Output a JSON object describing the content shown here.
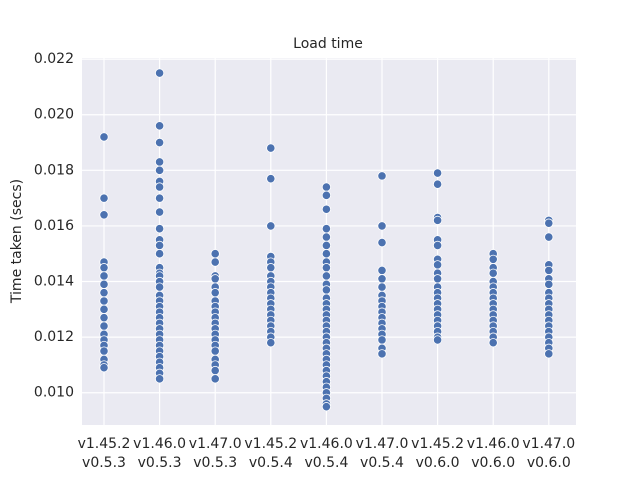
{
  "chart_data": {
    "type": "strip",
    "title": "Load time",
    "ylabel": "Time taken (secs)",
    "categories": [
      [
        "v1.45.2",
        "v0.5.3"
      ],
      [
        "v1.46.0",
        "v0.5.3"
      ],
      [
        "v1.47.0",
        "v0.5.3"
      ],
      [
        "v1.45.2",
        "v0.5.4"
      ],
      [
        "v1.46.0",
        "v0.5.4"
      ],
      [
        "v1.47.0",
        "v0.5.4"
      ],
      [
        "v1.45.2",
        "v0.6.0"
      ],
      [
        "v1.46.0",
        "v0.6.0"
      ],
      [
        "v1.47.0",
        "v0.6.0"
      ]
    ],
    "color": "#4c72b0",
    "values": [
      [
        0.0192,
        0.017,
        0.0164,
        0.0147,
        0.0145,
        0.0142,
        0.0139,
        0.0136,
        0.0133,
        0.013,
        0.0127,
        0.0124,
        0.0121,
        0.0119,
        0.0117,
        0.0115,
        0.0112,
        0.011,
        0.0109
      ],
      [
        0.0215,
        0.0196,
        0.019,
        0.0183,
        0.018,
        0.0176,
        0.0174,
        0.017,
        0.0165,
        0.0159,
        0.0155,
        0.0153,
        0.015,
        0.0145,
        0.0143,
        0.0142,
        0.014,
        0.0138,
        0.0135,
        0.0133,
        0.0131,
        0.0129,
        0.0127,
        0.0125,
        0.0123,
        0.0121,
        0.0119,
        0.0117,
        0.0115,
        0.0113,
        0.0111,
        0.0109,
        0.0107,
        0.0105
      ],
      [
        0.015,
        0.0147,
        0.0142,
        0.0141,
        0.0138,
        0.0136,
        0.0133,
        0.0131,
        0.0129,
        0.0127,
        0.0125,
        0.0123,
        0.0121,
        0.0119,
        0.0117,
        0.0115,
        0.0112,
        0.011,
        0.0108,
        0.0105
      ],
      [
        0.0188,
        0.0177,
        0.016,
        0.0149,
        0.0147,
        0.0145,
        0.0142,
        0.014,
        0.0138,
        0.0136,
        0.0134,
        0.0132,
        0.013,
        0.0128,
        0.0126,
        0.0124,
        0.0122,
        0.012,
        0.0118
      ],
      [
        0.0174,
        0.0171,
        0.0166,
        0.0159,
        0.0156,
        0.0153,
        0.015,
        0.0147,
        0.0145,
        0.0142,
        0.0139,
        0.0137,
        0.0134,
        0.0132,
        0.013,
        0.0128,
        0.0126,
        0.0124,
        0.0122,
        0.012,
        0.0118,
        0.0116,
        0.0114,
        0.0112,
        0.011,
        0.0108,
        0.0106,
        0.0104,
        0.0102,
        0.01,
        0.0098,
        0.0096,
        0.0095
      ],
      [
        0.0178,
        0.016,
        0.0154,
        0.0144,
        0.0141,
        0.0138,
        0.0135,
        0.0133,
        0.0131,
        0.0129,
        0.0127,
        0.0125,
        0.0123,
        0.0121,
        0.0119,
        0.0116,
        0.0114
      ],
      [
        0.0179,
        0.0175,
        0.0163,
        0.0162,
        0.0155,
        0.0153,
        0.0148,
        0.0146,
        0.0143,
        0.0141,
        0.0138,
        0.0136,
        0.0134,
        0.0132,
        0.013,
        0.0128,
        0.0126,
        0.0124,
        0.0122,
        0.012,
        0.0119
      ],
      [
        0.015,
        0.0148,
        0.0145,
        0.0143,
        0.014,
        0.0138,
        0.0136,
        0.0134,
        0.0132,
        0.013,
        0.0128,
        0.0126,
        0.0124,
        0.0122,
        0.012,
        0.0118
      ],
      [
        0.0162,
        0.0161,
        0.0156,
        0.0146,
        0.0144,
        0.0141,
        0.0139,
        0.0136,
        0.0134,
        0.0132,
        0.013,
        0.0128,
        0.0126,
        0.0124,
        0.0122,
        0.012,
        0.0118,
        0.0116,
        0.0114
      ]
    ],
    "ylim": [
      0.00884,
      0.02204
    ],
    "yticks": [
      {
        "value": 0.01,
        "label": "0.010"
      },
      {
        "value": 0.012,
        "label": "0.012"
      },
      {
        "value": 0.014,
        "label": "0.014"
      },
      {
        "value": 0.016,
        "label": "0.016"
      },
      {
        "value": 0.018,
        "label": "0.018"
      },
      {
        "value": 0.02,
        "label": "0.020"
      },
      {
        "value": 0.022,
        "label": "0.022"
      }
    ],
    "grid": true
  }
}
